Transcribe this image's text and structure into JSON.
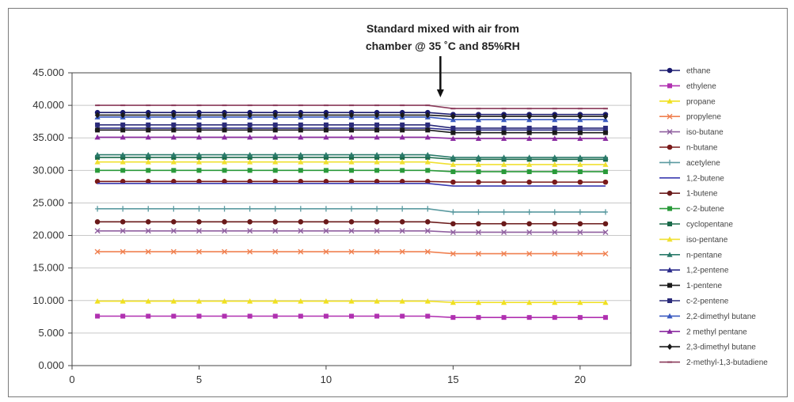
{
  "chart_data": {
    "type": "line",
    "title": "",
    "xlabel": "",
    "ylabel": "",
    "xlim": [
      0,
      22
    ],
    "ylim": [
      0,
      45
    ],
    "x_ticks": [
      "0",
      "5",
      "10",
      "15",
      "20"
    ],
    "y_ticks": [
      "0.000",
      "5.000",
      "10.000",
      "15.000",
      "20.000",
      "25.000",
      "30.000",
      "35.000",
      "40.000",
      "45.000"
    ],
    "grid": "horizontal",
    "legend": "right",
    "annotation": {
      "line1": "Standard mixed with air from",
      "line2": "chamber @ 35 ˚C and 85%RH",
      "x": 14.5
    },
    "x": [
      1,
      2,
      3,
      4,
      5,
      6,
      7,
      8,
      9,
      10,
      11,
      12,
      13,
      14,
      15,
      16,
      17,
      18,
      19,
      20,
      21
    ],
    "series": [
      {
        "name": "ethane",
        "color": "#1a1a6e",
        "marker": "circle",
        "before": 38.9,
        "after": 38.6
      },
      {
        "name": "ethylene",
        "color": "#b030b0",
        "marker": "square",
        "before": 7.6,
        "after": 7.4
      },
      {
        "name": "propane",
        "color": "#f0e020",
        "marker": "triangle",
        "before": 9.9,
        "after": 9.7
      },
      {
        "name": "propylene",
        "color": "#f08050",
        "marker": "x",
        "before": 17.5,
        "after": 17.2
      },
      {
        "name": "iso-butane",
        "color": "#9060a0",
        "marker": "x",
        "before": 20.7,
        "after": 20.5
      },
      {
        "name": "n-butane",
        "color": "#7a1a1a",
        "marker": "circle",
        "before": 28.3,
        "after": 28.2
      },
      {
        "name": "acetylene",
        "color": "#5a9aa0",
        "marker": "plus",
        "before": 24.1,
        "after": 23.6
      },
      {
        "name": "1,2-butene",
        "color": "#3a3ab0",
        "marker": "none",
        "before": 28.0,
        "after": 27.6
      },
      {
        "name": "1-butene",
        "color": "#6a1a1a",
        "marker": "circle",
        "before": 22.1,
        "after": 21.8
      },
      {
        "name": "c-2-butene",
        "color": "#2a9a3a",
        "marker": "square",
        "before": 30.0,
        "after": 29.8
      },
      {
        "name": "cyclopentane",
        "color": "#1a6a4a",
        "marker": "square",
        "before": 32.0,
        "after": 31.7
      },
      {
        "name": "iso-pentane",
        "color": "#f0e030",
        "marker": "triangle",
        "before": 31.3,
        "after": 30.9
      },
      {
        "name": "n-pentane",
        "color": "#2a7a6a",
        "marker": "triangle",
        "before": 32.4,
        "after": 32.0
      },
      {
        "name": "1,2-pentene",
        "color": "#2a2a8a",
        "marker": "triangle",
        "before": 36.5,
        "after": 36.2
      },
      {
        "name": "1-pentene",
        "color": "#1a1a1a",
        "marker": "square",
        "before": 36.2,
        "after": 35.8
      },
      {
        "name": "c-2-pentene",
        "color": "#2a2a7a",
        "marker": "square",
        "before": 37.0,
        "after": 36.5
      },
      {
        "name": "2,2-dimethyl butane",
        "color": "#3a5ac0",
        "marker": "triangle",
        "before": 38.2,
        "after": 37.8
      },
      {
        "name": "2 methyl pentane",
        "color": "#8a2aa0",
        "marker": "triangle",
        "before": 35.1,
        "after": 34.9
      },
      {
        "name": "2,3-dimethyl butane",
        "color": "#1a1a1a",
        "marker": "diamond",
        "before": 38.5,
        "after": 38.3
      },
      {
        "name": "2-methyl-1,3-butadiene",
        "color": "#8a3a5a",
        "marker": "dash",
        "before": 40.0,
        "after": 39.5
      }
    ]
  }
}
